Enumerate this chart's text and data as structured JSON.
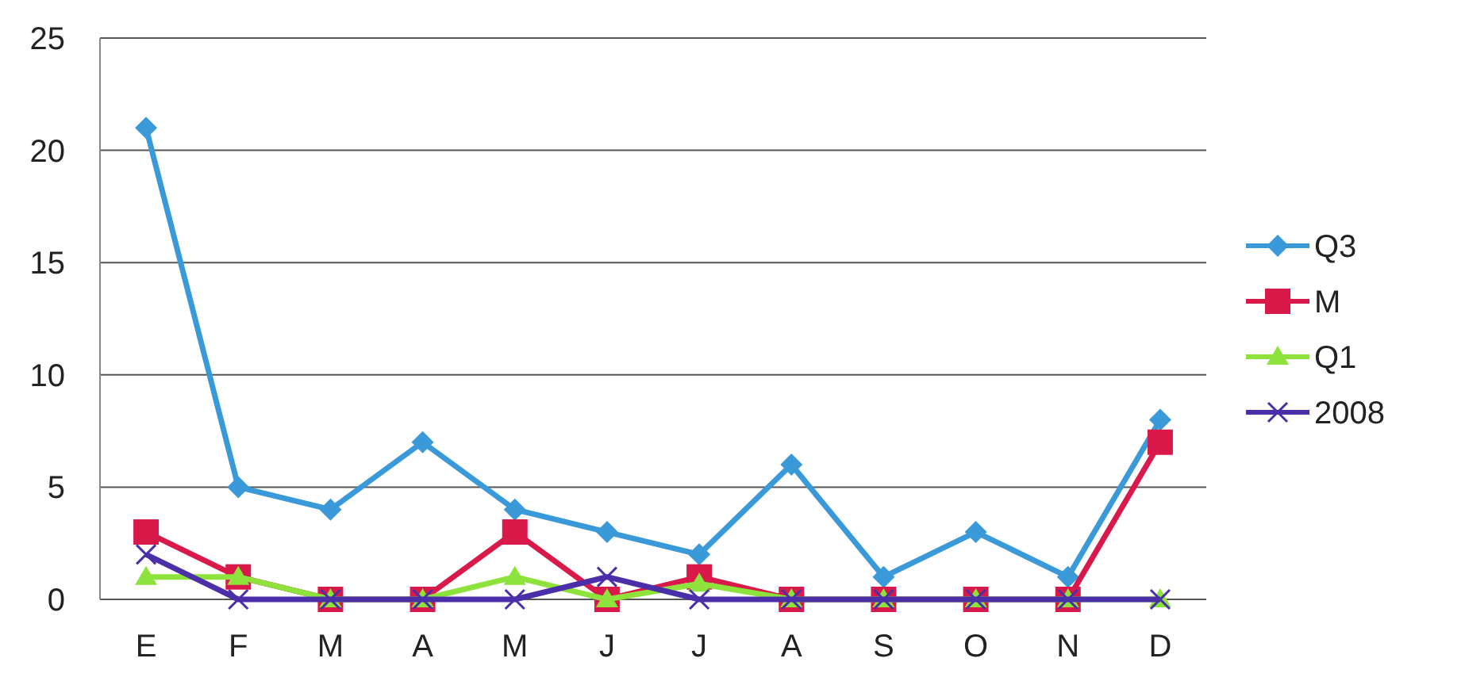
{
  "chart_data": {
    "type": "line",
    "categories": [
      "E",
      "F",
      "M",
      "A",
      "M",
      "J",
      "J",
      "A",
      "S",
      "O",
      "N",
      "D"
    ],
    "series": [
      {
        "name": "Q3",
        "color": "#3a9ad9",
        "marker": "diamond",
        "values": [
          21,
          5,
          4,
          7,
          4,
          3,
          2,
          6,
          1,
          3,
          1,
          8
        ]
      },
      {
        "name": "M",
        "color": "#d8194a",
        "marker": "square",
        "values": [
          3,
          1,
          0,
          0,
          3,
          0,
          1,
          0,
          0,
          0,
          0,
          7
        ]
      },
      {
        "name": "Q1",
        "color": "#8ee23c",
        "marker": "triangle",
        "values": [
          1,
          1,
          0,
          0,
          1,
          0,
          0.7,
          0,
          0,
          0,
          0,
          0
        ]
      },
      {
        "name": "2008",
        "color": "#4b2fa8",
        "marker": "cross",
        "values": [
          2,
          0,
          0,
          0,
          0,
          1,
          0,
          0,
          0,
          0,
          0,
          0
        ]
      }
    ],
    "ylim": [
      0,
      25
    ],
    "yticks": [
      0,
      5,
      10,
      15,
      20,
      25
    ],
    "grid": "y",
    "legend": "right"
  }
}
